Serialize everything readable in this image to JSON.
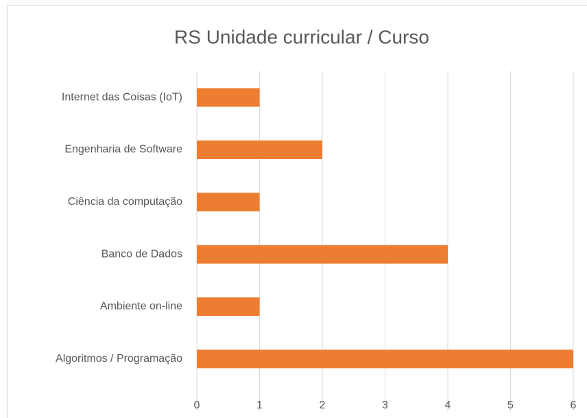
{
  "chart_data": {
    "type": "hbar",
    "title": "RS Unidade curricular / Curso",
    "categories": [
      "Internet das Coisas (IoT)",
      "Engenharia de Software",
      "Ciência da computação",
      "Banco de Dados",
      "Ambiente on-line",
      "Algoritmos / Programação"
    ],
    "values": [
      1,
      2,
      1,
      4,
      1,
      6
    ],
    "color": "#ed7d31",
    "xlim": [
      0,
      6
    ],
    "xticks": [
      0,
      1,
      2,
      3,
      4,
      5,
      6
    ],
    "grid": true
  }
}
